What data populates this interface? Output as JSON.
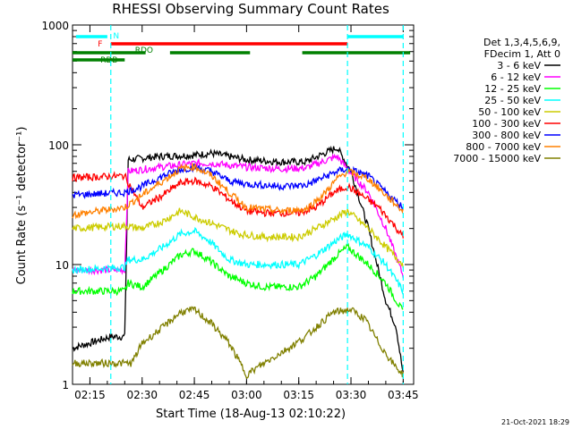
{
  "chart_data": {
    "type": "line",
    "title": "RHESSI Observing Summary Count Rates",
    "xlabel": "Start Time (18-Aug-13 02:10:22)",
    "ylabel": "Count Rate (s⁻¹ detector⁻¹)",
    "yscale": "log",
    "ylim": [
      1,
      1000
    ],
    "xlim": [
      "02:10",
      "03:48"
    ],
    "x_ticks": [
      "02:15",
      "02:30",
      "02:45",
      "03:00",
      "03:15",
      "03:30",
      "03:45"
    ],
    "y_ticks": [
      "1",
      "10",
      "100",
      "1000"
    ],
    "legend_header": [
      "Det 1,3,4,5,6,9,",
      "FDecim 1, Att 0"
    ],
    "legend_position": "right",
    "timestamp": "21-Oct-2021 18:29",
    "flag_labels": {
      "F": "F",
      "N": "N",
      "RDO": "RDO",
      "RDB": "RDB"
    },
    "vertical_markers": [
      "02:21",
      "03:29",
      "03:45"
    ],
    "series": [
      {
        "name": "3 - 6 keV",
        "color": "#000000",
        "points": [
          [
            "02:10",
            2
          ],
          [
            "02:21",
            2.5
          ],
          [
            "02:25",
            2.5
          ],
          [
            "02:26",
            75
          ],
          [
            "02:35",
            80
          ],
          [
            "02:45",
            82
          ],
          [
            "02:50",
            85
          ],
          [
            "03:00",
            75
          ],
          [
            "03:10",
            72
          ],
          [
            "03:17",
            72
          ],
          [
            "03:26",
            95
          ],
          [
            "03:30",
            60
          ],
          [
            "03:35",
            20
          ],
          [
            "03:40",
            5
          ],
          [
            "03:43",
            3
          ],
          [
            "03:45",
            1.2
          ]
        ]
      },
      {
        "name": "6 - 12 keV",
        "color": "#ff00ff",
        "points": [
          [
            "02:10",
            9
          ],
          [
            "02:25",
            9
          ],
          [
            "02:26",
            60
          ],
          [
            "02:35",
            65
          ],
          [
            "02:45",
            70
          ],
          [
            "02:50",
            70
          ],
          [
            "03:00",
            65
          ],
          [
            "03:10",
            63
          ],
          [
            "03:17",
            64
          ],
          [
            "03:26",
            80
          ],
          [
            "03:30",
            58
          ],
          [
            "03:35",
            40
          ],
          [
            "03:40",
            20
          ],
          [
            "03:45",
            8
          ]
        ]
      },
      {
        "name": "12 - 25 keV",
        "color": "#00ff00",
        "points": [
          [
            "02:10",
            6
          ],
          [
            "02:25",
            6
          ],
          [
            "02:26",
            7
          ],
          [
            "02:30",
            6.5
          ],
          [
            "02:36",
            9
          ],
          [
            "02:41",
            12
          ],
          [
            "02:45",
            13
          ],
          [
            "02:49",
            11
          ],
          [
            "02:55",
            8
          ],
          [
            "03:00",
            7
          ],
          [
            "03:05",
            6.5
          ],
          [
            "03:15",
            6.5
          ],
          [
            "03:20",
            8
          ],
          [
            "03:26",
            12
          ],
          [
            "03:29",
            14
          ],
          [
            "03:35",
            10
          ],
          [
            "03:40",
            7
          ],
          [
            "03:45",
            4
          ]
        ]
      },
      {
        "name": "25 - 50 keV",
        "color": "#00ffff",
        "points": [
          [
            "02:10",
            9
          ],
          [
            "02:25",
            9.5
          ],
          [
            "02:26",
            11
          ],
          [
            "02:30",
            11
          ],
          [
            "02:36",
            14
          ],
          [
            "02:41",
            18
          ],
          [
            "02:45",
            19
          ],
          [
            "02:49",
            16
          ],
          [
            "02:55",
            11
          ],
          [
            "03:00",
            10
          ],
          [
            "03:05",
            10
          ],
          [
            "03:15",
            10
          ],
          [
            "03:20",
            12
          ],
          [
            "03:26",
            16
          ],
          [
            "03:29",
            18
          ],
          [
            "03:35",
            14
          ],
          [
            "03:40",
            10
          ],
          [
            "03:45",
            6
          ]
        ]
      },
      {
        "name": "50 - 100 keV",
        "color": "#cccc00",
        "points": [
          [
            "02:10",
            20
          ],
          [
            "02:25",
            21
          ],
          [
            "02:30",
            20
          ],
          [
            "02:36",
            23
          ],
          [
            "02:41",
            28
          ],
          [
            "02:45",
            25
          ],
          [
            "02:52",
            21
          ],
          [
            "02:58",
            18
          ],
          [
            "03:05",
            17
          ],
          [
            "03:15",
            17
          ],
          [
            "03:20",
            20
          ],
          [
            "03:26",
            25
          ],
          [
            "03:29",
            28
          ],
          [
            "03:35",
            20
          ],
          [
            "03:40",
            14
          ],
          [
            "03:45",
            10
          ]
        ]
      },
      {
        "name": "100 - 300 keV",
        "color": "#ff0000",
        "points": [
          [
            "02:10",
            53
          ],
          [
            "02:25",
            55
          ],
          [
            "02:30",
            30
          ],
          [
            "02:36",
            38
          ],
          [
            "02:41",
            48
          ],
          [
            "02:45",
            50
          ],
          [
            "02:50",
            45
          ],
          [
            "02:55",
            35
          ],
          [
            "03:00",
            28
          ],
          [
            "03:05",
            27
          ],
          [
            "03:15",
            27
          ],
          [
            "03:20",
            30
          ],
          [
            "03:25",
            40
          ],
          [
            "03:29",
            45
          ],
          [
            "03:33",
            38
          ],
          [
            "03:38",
            30
          ],
          [
            "03:42",
            22
          ],
          [
            "03:45",
            17
          ]
        ]
      },
      {
        "name": "300 - 800 keV",
        "color": "#0000ff",
        "points": [
          [
            "02:10",
            38
          ],
          [
            "02:25",
            40
          ],
          [
            "02:30",
            45
          ],
          [
            "02:36",
            55
          ],
          [
            "02:41",
            62
          ],
          [
            "02:45",
            65
          ],
          [
            "02:50",
            60
          ],
          [
            "02:55",
            50
          ],
          [
            "03:00",
            47
          ],
          [
            "03:10",
            45
          ],
          [
            "03:17",
            46
          ],
          [
            "03:26",
            60
          ],
          [
            "03:29",
            63
          ],
          [
            "03:35",
            55
          ],
          [
            "03:40",
            40
          ],
          [
            "03:45",
            30
          ]
        ]
      },
      {
        "name": "800 - 7000 keV",
        "color": "#ff8000",
        "points": [
          [
            "02:10",
            26
          ],
          [
            "02:25",
            30
          ],
          [
            "02:30",
            38
          ],
          [
            "02:36",
            50
          ],
          [
            "02:41",
            63
          ],
          [
            "02:45",
            66
          ],
          [
            "02:50",
            55
          ],
          [
            "02:55",
            40
          ],
          [
            "03:00",
            30
          ],
          [
            "03:10",
            28
          ],
          [
            "03:17",
            29
          ],
          [
            "03:22",
            38
          ],
          [
            "03:26",
            52
          ],
          [
            "03:29",
            60
          ],
          [
            "03:35",
            52
          ],
          [
            "03:40",
            38
          ],
          [
            "03:45",
            28
          ]
        ]
      },
      {
        "name": "7000 - 15000 keV",
        "color": "#808000",
        "points": [
          [
            "02:10",
            1.5
          ],
          [
            "02:27",
            1.5
          ],
          [
            "02:30",
            2.2
          ],
          [
            "02:36",
            3
          ],
          [
            "02:41",
            4
          ],
          [
            "02:45",
            4.2
          ],
          [
            "02:50",
            3.2
          ],
          [
            "02:55",
            2.2
          ],
          [
            "03:00",
            1.2
          ],
          [
            "03:05",
            1.5
          ],
          [
            "03:12",
            2
          ],
          [
            "03:17",
            2.5
          ],
          [
            "03:20",
            3
          ],
          [
            "03:25",
            4
          ],
          [
            "03:30",
            4.2
          ],
          [
            "03:34",
            3.5
          ],
          [
            "03:38",
            2.2
          ],
          [
            "03:42",
            1.5
          ],
          [
            "03:45",
            1.2
          ]
        ]
      }
    ],
    "flags": [
      {
        "name": "N",
        "color": "#00ffff",
        "segments": [
          [
            "02:11",
            "02:20"
          ],
          [
            "03:29",
            "03:45"
          ]
        ]
      },
      {
        "name": "F",
        "color": "#ff0000",
        "segments": [
          [
            "02:21",
            "03:29"
          ]
        ]
      },
      {
        "name": "RDO",
        "color": "#008000",
        "segments": [
          [
            "02:10",
            "02:31"
          ],
          [
            "02:38",
            "03:01"
          ],
          [
            "03:16",
            "03:47"
          ]
        ]
      },
      {
        "name": "RDB",
        "color": "#008000",
        "segments": [
          [
            "02:10",
            "02:25"
          ]
        ]
      }
    ]
  }
}
